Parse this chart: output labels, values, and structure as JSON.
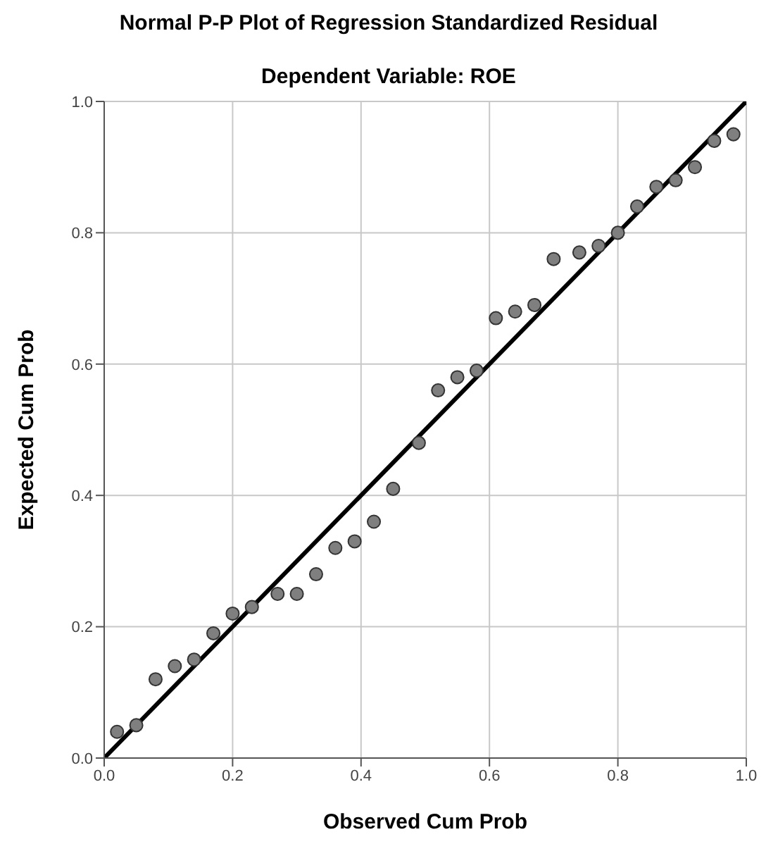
{
  "chart_data": {
    "type": "scatter",
    "title": "Normal P-P Plot of Regression Standardized Residual",
    "subtitle": "Dependent Variable: ROE",
    "xlabel": "Observed Cum Prob",
    "ylabel": "Expected Cum Prob",
    "xlim": [
      0,
      1
    ],
    "ylim": [
      0,
      1
    ],
    "xticks": [
      {
        "value": 0,
        "label": "0.0"
      },
      0.2,
      0.4,
      0.6,
      0.8,
      {
        "value": 1,
        "label": "1.0"
      }
    ],
    "yticks": [
      {
        "value": 0,
        "label": "0.0"
      },
      0.2,
      0.4,
      0.6,
      0.8,
      {
        "value": 1,
        "label": "1.0"
      }
    ],
    "grid": true,
    "legend": false,
    "series": [
      {
        "type": "scatter",
        "marker": "circle",
        "color": "#7f7f7f",
        "x": [
          0.02,
          0.05,
          0.08,
          0.11,
          0.14,
          0.17,
          0.2,
          0.23,
          0.27,
          0.3,
          0.33,
          0.36,
          0.39,
          0.42,
          0.45,
          0.49,
          0.52,
          0.55,
          0.58,
          0.61,
          0.64,
          0.67,
          0.7,
          0.74,
          0.77,
          0.8,
          0.83,
          0.86,
          0.89,
          0.92,
          0.95,
          0.98
        ],
        "values": [
          0.04,
          0.05,
          0.12,
          0.14,
          0.15,
          0.19,
          0.22,
          0.23,
          0.25,
          0.25,
          0.28,
          0.32,
          0.33,
          0.36,
          0.41,
          0.48,
          0.56,
          0.58,
          0.59,
          0.67,
          0.68,
          0.69,
          0.76,
          0.77,
          0.78,
          0.8,
          0.84,
          0.87,
          0.88,
          0.9,
          0.94,
          0.95
        ]
      },
      {
        "type": "line",
        "marker": "none",
        "line_style": "solid",
        "color": "#000000",
        "x": [
          0,
          1
        ],
        "values": [
          0,
          1
        ]
      }
    ]
  }
}
